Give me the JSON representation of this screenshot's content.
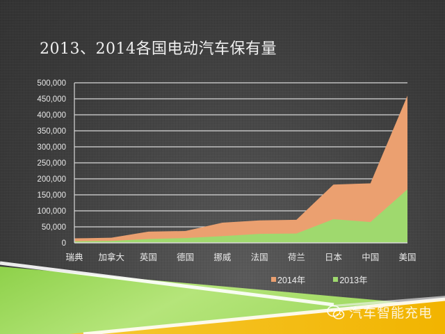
{
  "title": "2013、2014各国电动汽车保有量",
  "legend": [
    {
      "label": "2014年",
      "color": "#eba070"
    },
    {
      "label": "2013年",
      "color": "#9fd96e"
    }
  ],
  "watermark": {
    "text": "汽车智能充电",
    "icon": "wechat-icon"
  },
  "chart_data": {
    "type": "area",
    "title": "2013、2014各国电动汽车保有量",
    "xlabel": "",
    "ylabel": "",
    "categories": [
      "瑞典",
      "加拿大",
      "英国",
      "德国",
      "挪威",
      "法国",
      "荷兰",
      "日本",
      "中国",
      "美国"
    ],
    "series": [
      {
        "name": "2014年",
        "color": "#eba070",
        "values": [
          14000,
          16000,
          35000,
          37000,
          63000,
          70000,
          72000,
          182000,
          186000,
          460000
        ]
      },
      {
        "name": "2013年",
        "color": "#9fd96e",
        "values": [
          5000,
          6000,
          12000,
          15000,
          21000,
          28000,
          29000,
          74000,
          65000,
          167000
        ]
      }
    ],
    "ylim": [
      0,
      500000
    ],
    "yticks": [
      "0",
      "50,000",
      "100,000",
      "150,000",
      "200,000",
      "250,000",
      "300,000",
      "350,000",
      "400,000",
      "450,000",
      "500,000"
    ],
    "ytick_step": 50000,
    "grid": true,
    "legend_position": "bottom-right"
  }
}
